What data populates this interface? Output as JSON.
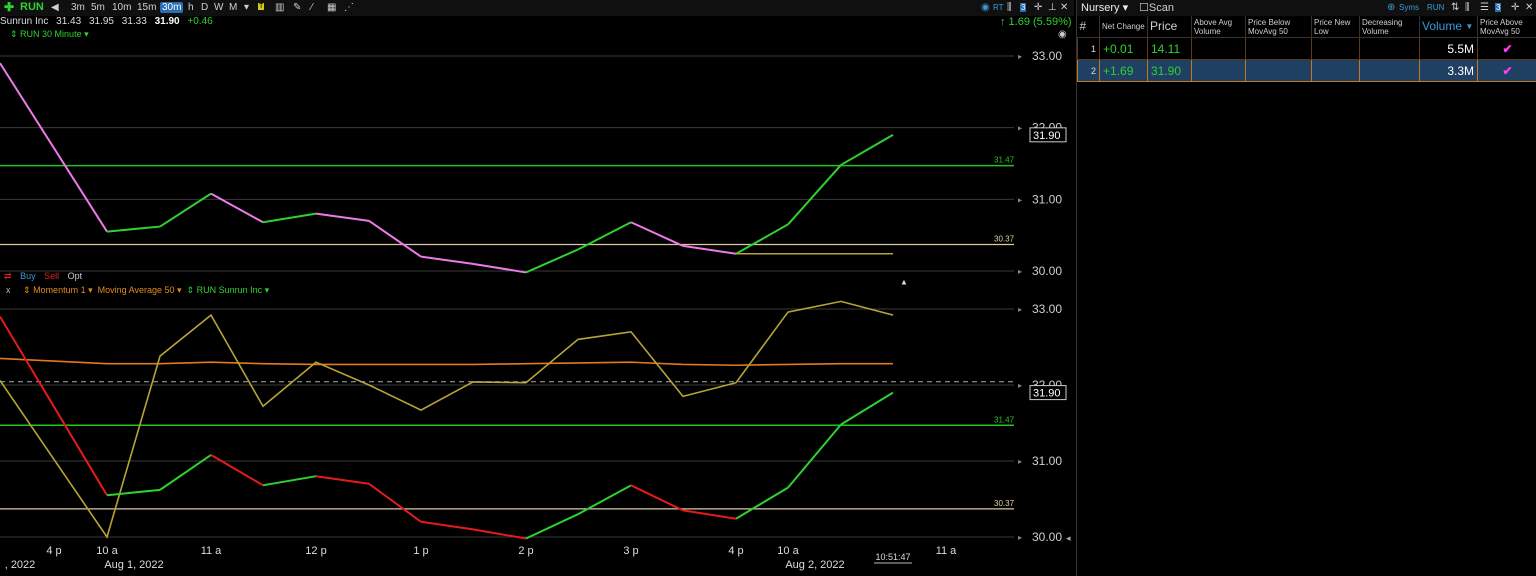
{
  "toolbar": {
    "symbol": "RUN",
    "intervals": [
      "3m",
      "5m",
      "10m",
      "15m",
      "30m",
      "h",
      "D",
      "W",
      "M"
    ],
    "active_interval": "30m",
    "change_arrow_text": "↑ 1.69 (5.59%)"
  },
  "quote": {
    "name": "Sunrun Inc",
    "open": "31.43",
    "high": "31.95",
    "low": "31.33",
    "last": "31.90",
    "change": "+0.46"
  },
  "top_chart": {
    "legend": "RUN 30 Minute",
    "price_labels": [
      "33.00",
      "32.00",
      "31.00",
      "30.00"
    ],
    "last_price_box": "31.90",
    "hline_green_label": "31.47",
    "hline_tan_label": "30.37"
  },
  "trade_bar": {
    "buy": "Buy",
    "sell": "Sell",
    "opt": "Opt"
  },
  "bottom_chart": {
    "legend_close": "x",
    "indicator_1": "Momentum 1",
    "indicator_2": "Moving Average 50",
    "indicator_3": "RUN Sunrun Inc",
    "price_labels": [
      "33.00",
      "32.00",
      "31.00",
      "30.00"
    ],
    "last_price_box": "31.90",
    "hline_green_label": "31.47",
    "hline_tan_label": "30.37"
  },
  "time_axis": {
    "labels": [
      {
        "t": "4 p"
      },
      {
        "t": "10 a"
      },
      {
        "t": "11 a"
      },
      {
        "t": "12 p"
      },
      {
        "t": "1 p"
      },
      {
        "t": "2 p"
      },
      {
        "t": "3 p"
      },
      {
        "t": "4 p"
      },
      {
        "t": "10 a"
      },
      {
        "t": "11 a"
      }
    ],
    "date_labels": [
      ", 2022",
      "Aug 1, 2022",
      "Aug 2, 2022"
    ],
    "cursor_time": "10:51:47"
  },
  "chart_data": {
    "type": "line",
    "x": [
      "4 p",
      "10 a",
      "10:30",
      "11 a",
      "11:30",
      "12 p",
      "12:30",
      "1 p",
      "1:30",
      "2 p",
      "2:30",
      "3 p",
      "3:30",
      "4 p",
      "10 a",
      "10:30",
      "11 a"
    ],
    "series": [
      {
        "name": "RUN",
        "values": [
          32.9,
          30.55,
          30.62,
          31.08,
          30.68,
          30.8,
          30.7,
          30.2,
          30.1,
          29.98,
          30.3,
          30.68,
          30.35,
          30.24,
          30.65,
          31.48,
          31.9
        ]
      },
      {
        "name": "Moving Average 50",
        "values": [
          32.35,
          32.28,
          32.28,
          32.3,
          32.28,
          32.27,
          32.27,
          32.27,
          32.27,
          32.28,
          32.29,
          32.3,
          32.27,
          32.26,
          32.27,
          32.28,
          32.28
        ]
      },
      {
        "name": "Momentum 1",
        "values": [
          32.06,
          30.0,
          32.38,
          32.92,
          31.72,
          32.3,
          32.0,
          31.67,
          32.04,
          32.03,
          32.6,
          32.7,
          31.85,
          32.03,
          32.96,
          33.1,
          32.92
        ]
      }
    ],
    "hlines": [
      31.47,
      30.37
    ],
    "ylim": [
      30.0,
      33.0
    ],
    "grid": true
  },
  "colors": {
    "up": "#2fd12f",
    "down_pink": "#ea7be8",
    "down_red": "#e51b1b",
    "ma_orange": "#e07a1e",
    "momentum_olive": "#b7a436",
    "hline_green": "#22c322",
    "hline_tan": "#d9c9a3"
  },
  "panel": {
    "watchlist_name": "Nursery",
    "scan_label": "Scan",
    "syms_label": "Syms",
    "symbol": "RUN",
    "columns": [
      "#",
      "Net Change",
      "Price",
      "Above Avg Volume",
      "Price Below MovAvg 50",
      "Price New Low",
      "Decreasing Volume",
      "Volume",
      "Price Above MovAvg 50"
    ],
    "rows": [
      {
        "idx": "1",
        "net_change": "+0.01",
        "price": "14.11",
        "volume": "5.5M",
        "check": "✔"
      },
      {
        "idx": "2",
        "net_change": "+1.69",
        "price": "31.90",
        "volume": "3.3M",
        "check": "✔"
      }
    ]
  }
}
